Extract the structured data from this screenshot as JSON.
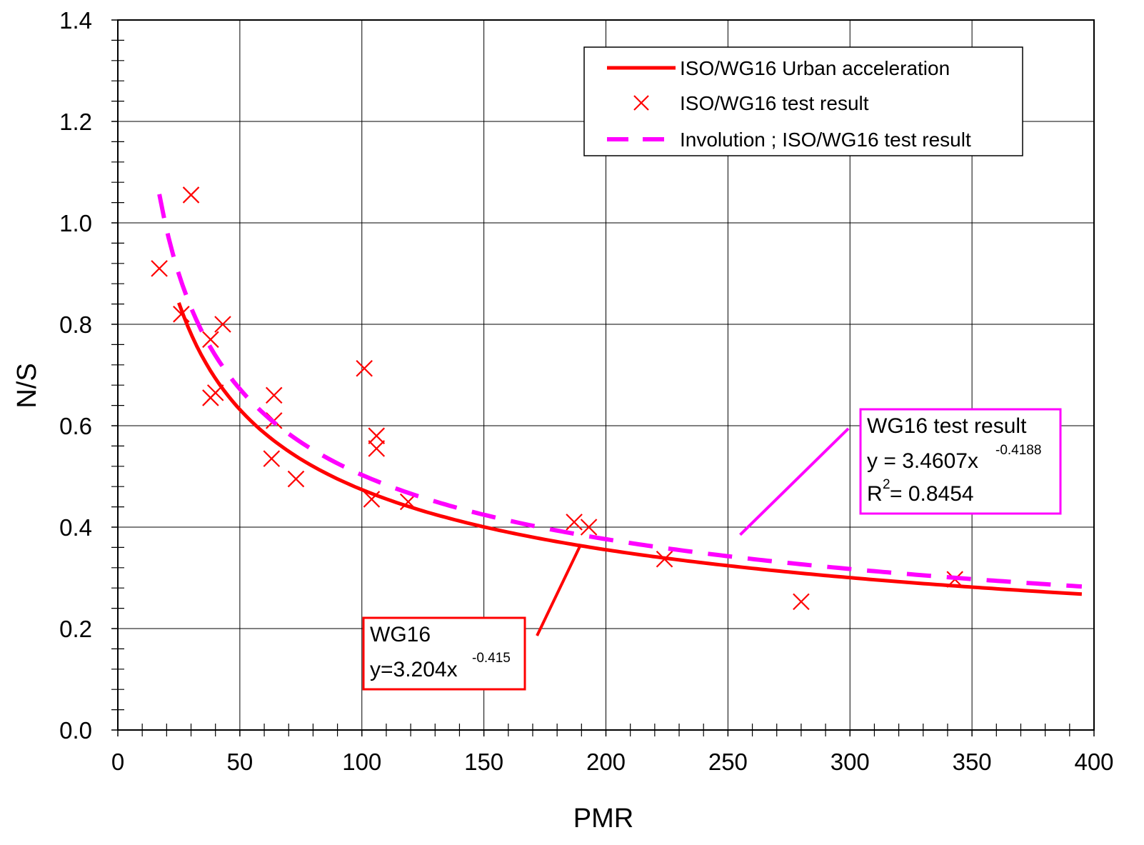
{
  "chart_data": {
    "type": "scatter",
    "xlabel": "PMR",
    "ylabel": "N/S",
    "xlim": [
      0,
      400
    ],
    "ylim": [
      0,
      1.4
    ],
    "x_ticks": [
      "0",
      "50",
      "100",
      "150",
      "200",
      "250",
      "300",
      "350",
      "400"
    ],
    "y_ticks": [
      "0.0",
      "0.2",
      "0.4",
      "0.6",
      "0.8",
      "1.0",
      "1.2",
      "1.4"
    ],
    "x_tick_values": [
      0,
      50,
      100,
      150,
      200,
      250,
      300,
      350,
      400
    ],
    "y_tick_values": [
      0,
      0.2,
      0.4,
      0.6,
      0.8,
      1.0,
      1.2,
      1.4
    ],
    "grid": true,
    "legend_position": "top-right",
    "series": [
      {
        "name": "ISO/WG16 Urban acceleration",
        "kind": "power-curve",
        "coef": 3.204,
        "exp": -0.415,
        "x_range": [
          25,
          395
        ],
        "color": "#ff0000",
        "style": "solid"
      },
      {
        "name": "ISO/WG16 test result",
        "kind": "points",
        "marker": "x",
        "color": "#ff0000",
        "points": [
          [
            17,
            0.91
          ],
          [
            26,
            0.82
          ],
          [
            30,
            1.055
          ],
          [
            38,
            0.655
          ],
          [
            38,
            0.77
          ],
          [
            40,
            0.665
          ],
          [
            43,
            0.8
          ],
          [
            63,
            0.535
          ],
          [
            64,
            0.61
          ],
          [
            64,
            0.66
          ],
          [
            73,
            0.495
          ],
          [
            101,
            0.713
          ],
          [
            104,
            0.455
          ],
          [
            106,
            0.555
          ],
          [
            106,
            0.58
          ],
          [
            119,
            0.45
          ],
          [
            187,
            0.41
          ],
          [
            193,
            0.4
          ],
          [
            224,
            0.337
          ],
          [
            280,
            0.253
          ],
          [
            343,
            0.297
          ]
        ]
      },
      {
        "name": "Involution ; ISO/WG16 test result",
        "kind": "power-curve",
        "coef": 3.4607,
        "exp": -0.4188,
        "x_range": [
          17,
          395
        ],
        "color": "#ff00ff",
        "style": "dashed"
      }
    ],
    "annotations": [
      {
        "id": "wg16-fit",
        "lines": [
          "WG16",
          "y=3.204x",
          "-0.415"
        ],
        "color": "#ff0000",
        "pointer_to": [
          195,
          0.4
        ]
      },
      {
        "id": "wg16-test-fit",
        "lines": [
          "WG16 test result",
          "y = 3.4607x",
          "-0.4188",
          "R",
          "2",
          " = 0.8454"
        ],
        "color": "#ff00ff",
        "pointer_to": [
          255,
          0.385
        ]
      }
    ]
  }
}
